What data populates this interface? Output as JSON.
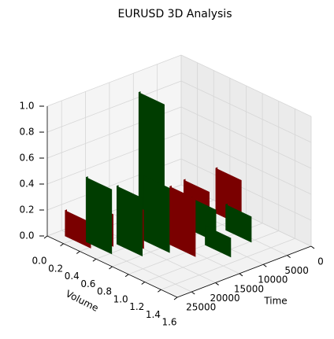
{
  "chart_data": {
    "type": "bar3d",
    "title": "EURUSD 3D Analysis",
    "xlabel": "Time",
    "ylabel": "Volume",
    "xlim": [
      0,
      28000
    ],
    "ylim": [
      0,
      1.6
    ],
    "zlim": [
      0,
      1
    ],
    "xticks": [
      0,
      5000,
      10000,
      15000,
      20000,
      25000
    ],
    "yticks": [
      {
        "value": 0,
        "label": "0.0"
      },
      0.2,
      0.4,
      0.6,
      0.8,
      {
        "value": 1,
        "label": "1.0"
      },
      1.2,
      1.4,
      1.6
    ],
    "zticks": [
      {
        "value": 0,
        "label": "0.0"
      },
      0.2,
      0.4,
      0.6,
      0.8,
      {
        "value": 1,
        "label": "1.0"
      }
    ],
    "x": [
      3000,
      6000,
      8000,
      10000,
      12000,
      14000,
      16000,
      18000,
      20000,
      22000,
      23000,
      25000,
      26000
    ],
    "y": [
      0.6,
      0.9,
      0.5,
      0.7,
      1.0,
      0.3,
      0.8,
      0.6,
      0.4,
      0.5,
      0.2,
      0.3,
      0.1
    ],
    "values": [
      0.35,
      0.2,
      0.3,
      0.25,
      0.15,
      1.0,
      0.45,
      0.5,
      0.3,
      0.45,
      0.25,
      0.5,
      0.2
    ],
    "colors": [
      "#7a0000",
      "#003d00",
      "#7a0000",
      "#003d00",
      "#003d00",
      "#003d00",
      "#7a0000",
      "#003d00",
      "#7a0000",
      "#003d00",
      "#7a0000",
      "#003d00",
      "#7a0000"
    ],
    "grid": true
  }
}
